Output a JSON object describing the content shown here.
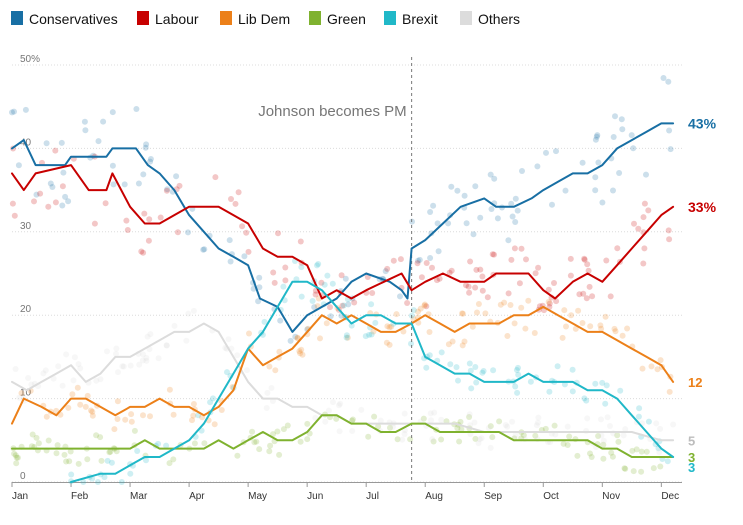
{
  "chart_data": {
    "type": "line",
    "title": "",
    "xlabel": "",
    "ylabel": "",
    "xlim": [
      0,
      11.35
    ],
    "ylim": [
      0,
      50
    ],
    "y_ticks": [
      {
        "value": 0,
        "label": "0"
      },
      {
        "value": 10,
        "label": "10"
      },
      {
        "value": 20,
        "label": "20"
      },
      {
        "value": 30,
        "label": "30"
      },
      {
        "value": 40,
        "label": "40"
      },
      {
        "value": 50,
        "label": "50%"
      }
    ],
    "x_ticks": [
      {
        "value": 0,
        "label": "Jan"
      },
      {
        "value": 1,
        "label": "Feb"
      },
      {
        "value": 2,
        "label": "Mar"
      },
      {
        "value": 3,
        "label": "Apr"
      },
      {
        "value": 4,
        "label": "May"
      },
      {
        "value": 5,
        "label": "Jun"
      },
      {
        "value": 6,
        "label": "Jul"
      },
      {
        "value": 7,
        "label": "Aug"
      },
      {
        "value": 8,
        "label": "Sep"
      },
      {
        "value": 9,
        "label": "Oct"
      },
      {
        "value": 10,
        "label": "Nov"
      },
      {
        "value": 11,
        "label": "Dec"
      }
    ],
    "annotation": {
      "label": "Johnson becomes PM",
      "x": 6.77
    },
    "legend": {
      "position": "top-left"
    },
    "series": [
      {
        "name": "Conservatives",
        "color": "#186fa4",
        "end_label": "43%",
        "x": [
          0,
          0.2,
          0.4,
          0.9,
          1.0,
          1.6,
          1.7,
          2.1,
          2.3,
          2.5,
          2.75,
          3.0,
          3.25,
          3.5,
          3.75,
          4.0,
          4.2,
          4.5,
          4.75,
          5.0,
          5.25,
          5.5,
          5.75,
          6.0,
          6.4,
          6.6,
          6.7,
          6.77,
          7.0,
          7.3,
          7.6,
          8.0,
          8.2,
          8.5,
          8.8,
          9.0,
          9.25,
          9.5,
          9.75,
          10.0,
          10.25,
          10.5,
          10.75,
          11.0,
          11.2
        ],
        "y": [
          40,
          41,
          38,
          38,
          39,
          39,
          40,
          40,
          38,
          37,
          35,
          32,
          30,
          28,
          27,
          26,
          22,
          21,
          18,
          20,
          21,
          22,
          24,
          25,
          24,
          23,
          22,
          28,
          29,
          31,
          33,
          34,
          33,
          33,
          34,
          35,
          36,
          37,
          37,
          38,
          40,
          41,
          42,
          43,
          43
        ]
      },
      {
        "name": "Labour",
        "color": "#c70000",
        "end_label": "33%",
        "x": [
          0,
          0.2,
          0.4,
          1.0,
          1.3,
          1.6,
          1.7,
          2.0,
          2.25,
          2.5,
          2.75,
          3.0,
          3.25,
          3.5,
          3.75,
          4.0,
          4.25,
          4.5,
          4.75,
          5.0,
          5.25,
          5.5,
          5.75,
          6.0,
          6.3,
          6.6,
          6.77,
          7.0,
          7.3,
          7.6,
          8.0,
          8.2,
          8.5,
          8.75,
          9.0,
          9.2,
          9.5,
          9.75,
          10.0,
          10.25,
          10.5,
          10.75,
          11.0,
          11.2
        ],
        "y": [
          37,
          35,
          37,
          38,
          35,
          35,
          37,
          33,
          31,
          31,
          32,
          33,
          33,
          33,
          32,
          31,
          28,
          27,
          27,
          26,
          22,
          23,
          22,
          23,
          24,
          25,
          23,
          24,
          25,
          24,
          24,
          25,
          25,
          25,
          23,
          22,
          24,
          25,
          24,
          26,
          28,
          30,
          32,
          33
        ]
      },
      {
        "name": "Lib Dem",
        "color": "#ec8019",
        "end_label": "12",
        "x": [
          0,
          0.2,
          0.5,
          0.75,
          1.0,
          1.25,
          1.5,
          1.75,
          2.0,
          2.25,
          2.5,
          2.75,
          3.0,
          3.25,
          3.5,
          3.75,
          4.0,
          4.25,
          4.5,
          4.75,
          5.0,
          5.25,
          5.5,
          5.75,
          6.0,
          6.25,
          6.5,
          6.77,
          7.0,
          7.25,
          7.5,
          7.75,
          8.0,
          8.25,
          8.5,
          8.75,
          9.0,
          9.25,
          9.5,
          9.75,
          10.0,
          10.25,
          10.5,
          10.75,
          11.0,
          11.2
        ],
        "y": [
          7,
          10,
          9,
          8,
          10,
          10,
          9,
          8,
          9,
          9,
          10,
          9,
          9,
          8,
          9,
          11,
          16,
          14,
          15,
          16,
          18,
          20,
          19,
          20,
          19,
          18,
          18,
          19,
          20,
          19,
          18,
          19,
          19,
          19,
          20,
          20,
          21,
          20,
          19,
          18,
          18,
          17,
          16,
          15,
          14,
          12
        ]
      },
      {
        "name": "Green",
        "color": "#7fb22f",
        "end_label": "3",
        "x": [
          0,
          0.5,
          1.0,
          1.5,
          2.0,
          2.25,
          2.5,
          2.75,
          3.0,
          3.25,
          3.5,
          3.75,
          4.0,
          4.25,
          4.5,
          4.75,
          5.0,
          5.25,
          5.5,
          5.75,
          6.0,
          6.25,
          6.5,
          6.77,
          7.0,
          7.25,
          7.5,
          7.75,
          8.0,
          8.25,
          8.5,
          8.75,
          9.0,
          9.25,
          9.5,
          9.75,
          10.0,
          10.25,
          10.5,
          10.75,
          11.0,
          11.2
        ],
        "y": [
          4,
          4,
          4,
          4,
          4,
          5,
          4,
          4,
          4,
          4,
          5,
          4,
          5,
          6,
          5,
          5,
          6,
          8,
          8,
          7,
          7,
          6,
          6,
          7,
          7,
          6,
          6,
          6,
          6,
          6,
          5,
          5,
          5,
          5,
          5,
          5,
          4,
          4,
          3,
          3,
          3,
          3
        ]
      },
      {
        "name": "Brexit",
        "color": "#20b8c8",
        "end_label": "3",
        "x": [
          1.0,
          1.5,
          1.75,
          2.0,
          2.25,
          2.5,
          2.75,
          3.0,
          3.25,
          3.5,
          3.75,
          4.0,
          4.25,
          4.5,
          4.75,
          5.0,
          5.25,
          5.5,
          5.75,
          6.0,
          6.25,
          6.5,
          6.77,
          7.0,
          7.25,
          7.5,
          7.75,
          8.0,
          8.25,
          8.5,
          8.75,
          9.0,
          9.25,
          9.5,
          9.75,
          10.0,
          10.25,
          10.5,
          10.75,
          11.0,
          11.2
        ],
        "y": [
          0,
          1,
          1,
          2,
          3,
          3,
          4,
          5,
          7,
          10,
          13,
          16,
          18,
          21,
          24,
          24,
          23,
          21,
          19,
          20,
          20,
          19,
          19,
          15,
          14,
          13,
          13,
          12,
          12,
          12,
          13,
          12,
          12,
          12,
          11,
          11,
          10,
          8,
          6,
          4,
          3
        ]
      },
      {
        "name": "Others",
        "color": "#dcdcdc",
        "end_label": "5",
        "x": [
          0,
          0.25,
          0.5,
          0.75,
          1.0,
          1.25,
          1.5,
          1.75,
          2.0,
          2.25,
          2.5,
          2.75,
          3.0,
          3.25,
          3.5,
          3.75,
          4.0,
          4.25,
          4.5,
          4.75,
          5.0,
          5.25,
          5.5,
          5.75,
          6.0,
          6.25,
          6.5,
          6.77,
          7.0,
          7.5,
          8.0,
          8.5,
          9.0,
          9.5,
          10.0,
          10.5,
          11.0,
          11.2
        ],
        "y": [
          12,
          11,
          12,
          13,
          14,
          12,
          13,
          15,
          15,
          16,
          17,
          18,
          18,
          19,
          18,
          15,
          12,
          10,
          10,
          9,
          9,
          8,
          8,
          7,
          7,
          7,
          7,
          7,
          7,
          7,
          6,
          6,
          6,
          6,
          6,
          6,
          5,
          5
        ]
      }
    ]
  }
}
